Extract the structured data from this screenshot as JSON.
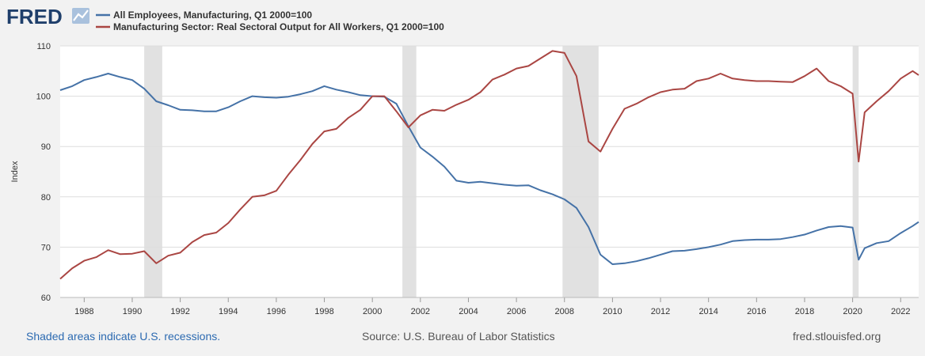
{
  "brand": {
    "logo_text": "FRED"
  },
  "colors": {
    "employees": "#4572a7",
    "output": "#aa4643",
    "recession": "#e1e1e1",
    "grid": "#dddddd",
    "plot_bg": "#ffffff",
    "page_bg": "#f2f2f2",
    "footer_link": "#2c6ab1"
  },
  "footer": {
    "recessions": "Shaded areas indicate U.S. recessions.",
    "source": "Source: U.S. Bureau of Labor Statistics",
    "site": "fred.stlouisfed.org"
  },
  "chart_data": {
    "type": "line",
    "ylabel": "Index",
    "ylim": [
      60,
      110
    ],
    "yticks": [
      60,
      70,
      80,
      90,
      100,
      110
    ],
    "xlim": [
      1987.0,
      2022.75
    ],
    "xticks": [
      1988,
      1990,
      1992,
      1994,
      1996,
      1998,
      2000,
      2002,
      2004,
      2006,
      2008,
      2010,
      2012,
      2014,
      2016,
      2018,
      2020,
      2022
    ],
    "grid": true,
    "legend_position": "top-left",
    "recessions": [
      [
        1990.5,
        1991.25
      ],
      [
        2001.25,
        2001.83
      ],
      [
        2007.92,
        2009.42
      ],
      [
        2020.0,
        2020.25
      ]
    ],
    "series": [
      {
        "name": "All Employees, Manufacturing, Q1 2000=100",
        "color_key": "employees",
        "x": [
          1987.0,
          1987.5,
          1988.0,
          1988.5,
          1989.0,
          1989.5,
          1990.0,
          1990.5,
          1991.0,
          1991.5,
          1992.0,
          1992.5,
          1993.0,
          1993.5,
          1994.0,
          1994.5,
          1995.0,
          1995.5,
          1996.0,
          1996.5,
          1997.0,
          1997.5,
          1998.0,
          1998.5,
          1999.0,
          1999.5,
          2000.0,
          2000.5,
          2001.0,
          2001.5,
          2002.0,
          2002.5,
          2003.0,
          2003.5,
          2004.0,
          2004.5,
          2005.0,
          2005.5,
          2006.0,
          2006.5,
          2007.0,
          2007.5,
          2008.0,
          2008.5,
          2009.0,
          2009.5,
          2010.0,
          2010.5,
          2011.0,
          2011.5,
          2012.0,
          2012.5,
          2013.0,
          2013.5,
          2014.0,
          2014.5,
          2015.0,
          2015.5,
          2016.0,
          2016.5,
          2017.0,
          2017.5,
          2018.0,
          2018.5,
          2019.0,
          2019.5,
          2020.0,
          2020.25,
          2020.5,
          2021.0,
          2021.5,
          2022.0,
          2022.5,
          2022.75
        ],
        "values": [
          101.2,
          102.0,
          103.2,
          103.8,
          104.5,
          103.8,
          103.2,
          101.5,
          99.0,
          98.2,
          97.3,
          97.2,
          97.0,
          97.0,
          97.8,
          99.0,
          100.0,
          99.8,
          99.7,
          99.9,
          100.4,
          101.0,
          102.0,
          101.3,
          100.8,
          100.2,
          100.0,
          99.9,
          98.5,
          94.0,
          89.8,
          88.0,
          86.0,
          83.2,
          82.8,
          83.0,
          82.7,
          82.4,
          82.2,
          82.3,
          81.3,
          80.5,
          79.5,
          77.8,
          74.0,
          68.5,
          66.6,
          66.8,
          67.2,
          67.8,
          68.5,
          69.2,
          69.3,
          69.6,
          70.0,
          70.5,
          71.2,
          71.4,
          71.5,
          71.5,
          71.6,
          72.0,
          72.5,
          73.3,
          74.0,
          74.2,
          73.9,
          67.5,
          69.8,
          70.8,
          71.2,
          72.8,
          74.2,
          75.0
        ]
      },
      {
        "name": "Manufacturing Sector: Real Sectoral Output for All Workers, Q1 2000=100",
        "color_key": "output",
        "x": [
          1987.0,
          1987.5,
          1988.0,
          1988.5,
          1989.0,
          1989.5,
          1990.0,
          1990.5,
          1991.0,
          1991.5,
          1992.0,
          1992.5,
          1993.0,
          1993.5,
          1994.0,
          1994.5,
          1995.0,
          1995.5,
          1996.0,
          1996.5,
          1997.0,
          1997.5,
          1998.0,
          1998.5,
          1999.0,
          1999.5,
          2000.0,
          2000.5,
          2001.0,
          2001.5,
          2002.0,
          2002.5,
          2003.0,
          2003.5,
          2004.0,
          2004.5,
          2005.0,
          2005.5,
          2006.0,
          2006.5,
          2007.0,
          2007.5,
          2008.0,
          2008.5,
          2009.0,
          2009.5,
          2010.0,
          2010.5,
          2011.0,
          2011.5,
          2012.0,
          2012.5,
          2013.0,
          2013.5,
          2014.0,
          2014.5,
          2015.0,
          2015.5,
          2016.0,
          2016.5,
          2017.0,
          2017.5,
          2018.0,
          2018.5,
          2019.0,
          2019.5,
          2020.0,
          2020.25,
          2020.5,
          2021.0,
          2021.5,
          2022.0,
          2022.5,
          2022.75
        ],
        "values": [
          63.7,
          65.8,
          67.3,
          68.0,
          69.4,
          68.6,
          68.7,
          69.2,
          66.8,
          68.3,
          68.9,
          71.0,
          72.4,
          72.9,
          74.8,
          77.5,
          80.0,
          80.3,
          81.2,
          84.4,
          87.3,
          90.5,
          93.0,
          93.5,
          95.7,
          97.3,
          100.0,
          100.0,
          97.0,
          93.8,
          96.2,
          97.3,
          97.1,
          98.3,
          99.3,
          100.8,
          103.3,
          104.3,
          105.5,
          106.0,
          107.5,
          109.0,
          108.6,
          104.0,
          91.0,
          89.0,
          93.5,
          97.5,
          98.5,
          99.8,
          100.8,
          101.3,
          101.5,
          103.0,
          103.5,
          104.5,
          103.5,
          103.2,
          103.0,
          103.0,
          102.9,
          102.8,
          104.0,
          105.5,
          103.0,
          102.0,
          100.5,
          87.0,
          96.8,
          99.0,
          101.0,
          103.5,
          105.0,
          104.2
        ]
      }
    ]
  }
}
